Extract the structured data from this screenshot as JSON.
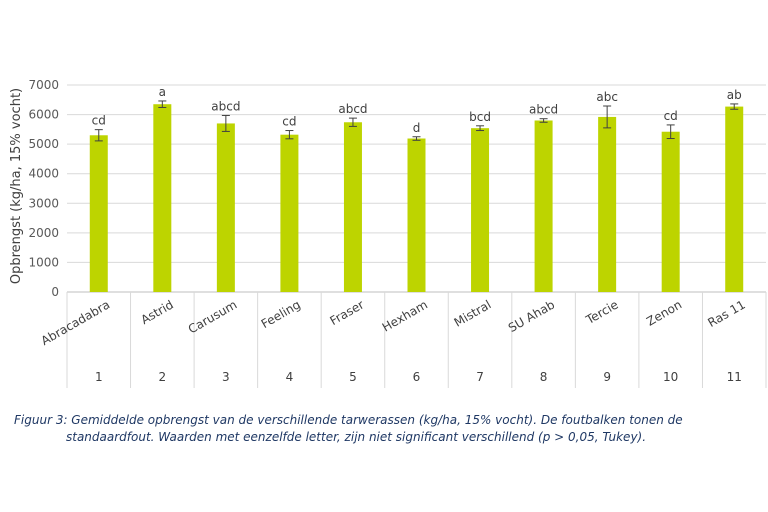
{
  "chart_data": {
    "type": "bar",
    "ylabel": "Opbrengst (kg/ha, 15% vocht)",
    "ylim": [
      0,
      7000
    ],
    "yticks": [
      0,
      1000,
      2000,
      3000,
      4000,
      5000,
      6000,
      7000
    ],
    "grid": true,
    "categories": [
      "Abracadabra",
      "Astrid",
      "Carusum",
      "Feeling",
      "Fraser",
      "Hexham",
      "Mistral",
      "SU Ahab",
      "Tercie",
      "Zenon",
      "Ras 11"
    ],
    "numbers": [
      "1",
      "2",
      "3",
      "4",
      "5",
      "6",
      "7",
      "8",
      "9",
      "10",
      "11"
    ],
    "values": [
      5300,
      6350,
      5700,
      5320,
      5740,
      5190,
      5540,
      5800,
      5920,
      5420,
      6270
    ],
    "errors": [
      190,
      110,
      270,
      140,
      140,
      60,
      80,
      60,
      370,
      230,
      90
    ],
    "significance": [
      "cd",
      "a",
      "abcd",
      "cd",
      "abcd",
      "d",
      "bcd",
      "abcd",
      "abc",
      "cd",
      "ab"
    ],
    "bar_color": "#bdd400"
  },
  "caption": {
    "line1": "Figuur 3: Gemiddelde opbrengst van de verschillende tarwerassen (kg/ha, 15% vocht). De foutbalken tonen de",
    "line2": "standaardfout. Waarden met eenzelfde letter, zijn niet significant verschillend (p > 0,05, Tukey)."
  }
}
